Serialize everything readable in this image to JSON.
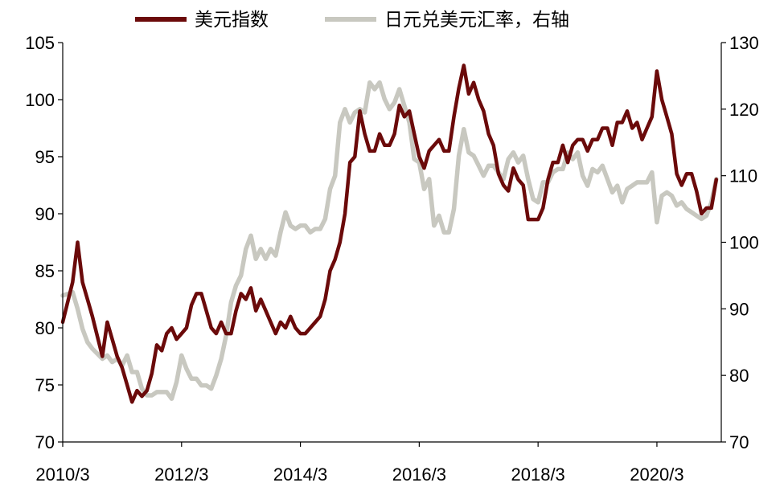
{
  "chart_data": {
    "type": "line",
    "legend_position": "top",
    "grid": false,
    "series": [
      {
        "name": "美元指数",
        "axis": "left",
        "color": "#6b0a0a",
        "points": [
          [
            "2010-03",
            80.5
          ],
          [
            "2010-05",
            84.0
          ],
          [
            "2010-06",
            87.5
          ],
          [
            "2010-07",
            84.0
          ],
          [
            "2010-08",
            82.5
          ],
          [
            "2010-09",
            81.0
          ],
          [
            "2010-11",
            77.5
          ],
          [
            "2010-12",
            80.5
          ],
          [
            "2011-01",
            79.0
          ],
          [
            "2011-02",
            77.5
          ],
          [
            "2011-03",
            76.5
          ],
          [
            "2011-04",
            75.0
          ],
          [
            "2011-05",
            73.5
          ],
          [
            "2011-06",
            74.5
          ],
          [
            "2011-07",
            74.0
          ],
          [
            "2011-08",
            74.5
          ],
          [
            "2011-09",
            76.0
          ],
          [
            "2011-10",
            78.5
          ],
          [
            "2011-11",
            78.0
          ],
          [
            "2011-12",
            79.5
          ],
          [
            "2012-01",
            80.0
          ],
          [
            "2012-02",
            79.0
          ],
          [
            "2012-03",
            79.5
          ],
          [
            "2012-04",
            80.0
          ],
          [
            "2012-05",
            82.0
          ],
          [
            "2012-06",
            83.0
          ],
          [
            "2012-07",
            83.0
          ],
          [
            "2012-08",
            81.5
          ],
          [
            "2012-09",
            80.0
          ],
          [
            "2012-10",
            79.5
          ],
          [
            "2012-11",
            80.5
          ],
          [
            "2012-12",
            79.5
          ],
          [
            "2013-01",
            79.5
          ],
          [
            "2013-02",
            81.5
          ],
          [
            "2013-03",
            83.0
          ],
          [
            "2013-04",
            82.5
          ],
          [
            "2013-05",
            83.5
          ],
          [
            "2013-06",
            81.5
          ],
          [
            "2013-07",
            82.5
          ],
          [
            "2013-08",
            81.5
          ],
          [
            "2013-09",
            80.5
          ],
          [
            "2013-10",
            79.5
          ],
          [
            "2013-11",
            80.5
          ],
          [
            "2013-12",
            80.0
          ],
          [
            "2014-01",
            81.0
          ],
          [
            "2014-02",
            80.0
          ],
          [
            "2014-03",
            79.5
          ],
          [
            "2014-04",
            79.5
          ],
          [
            "2014-05",
            80.0
          ],
          [
            "2014-06",
            80.5
          ],
          [
            "2014-07",
            81.0
          ],
          [
            "2014-08",
            82.5
          ],
          [
            "2014-09",
            85.0
          ],
          [
            "2014-10",
            86.0
          ],
          [
            "2014-11",
            87.5
          ],
          [
            "2014-12",
            90.0
          ],
          [
            "2015-01",
            94.5
          ],
          [
            "2015-02",
            95.0
          ],
          [
            "2015-03",
            99.0
          ],
          [
            "2015-04",
            97.0
          ],
          [
            "2015-05",
            95.5
          ],
          [
            "2015-06",
            95.5
          ],
          [
            "2015-07",
            97.0
          ],
          [
            "2015-08",
            96.0
          ],
          [
            "2015-09",
            96.0
          ],
          [
            "2015-10",
            97.0
          ],
          [
            "2015-11",
            99.5
          ],
          [
            "2015-12",
            98.5
          ],
          [
            "2016-01",
            99.0
          ],
          [
            "2016-02",
            97.0
          ],
          [
            "2016-03",
            95.0
          ],
          [
            "2016-04",
            94.0
          ],
          [
            "2016-05",
            95.5
          ],
          [
            "2016-06",
            96.0
          ],
          [
            "2016-07",
            96.5
          ],
          [
            "2016-08",
            95.5
          ],
          [
            "2016-09",
            95.5
          ],
          [
            "2016-10",
            98.5
          ],
          [
            "2016-11",
            101.0
          ],
          [
            "2016-12",
            103.0
          ],
          [
            "2017-01",
            100.5
          ],
          [
            "2017-02",
            101.5
          ],
          [
            "2017-03",
            100.0
          ],
          [
            "2017-04",
            99.0
          ],
          [
            "2017-05",
            97.0
          ],
          [
            "2017-06",
            96.0
          ],
          [
            "2017-07",
            93.5
          ],
          [
            "2017-08",
            92.5
          ],
          [
            "2017-09",
            92.0
          ],
          [
            "2017-10",
            94.0
          ],
          [
            "2017-11",
            93.0
          ],
          [
            "2017-12",
            92.5
          ],
          [
            "2018-01",
            89.5
          ],
          [
            "2018-02",
            89.5
          ],
          [
            "2018-03",
            89.5
          ],
          [
            "2018-04",
            90.5
          ],
          [
            "2018-05",
            93.0
          ],
          [
            "2018-06",
            94.5
          ],
          [
            "2018-07",
            94.5
          ],
          [
            "2018-08",
            96.0
          ],
          [
            "2018-09",
            94.5
          ],
          [
            "2018-10",
            96.0
          ],
          [
            "2018-11",
            96.5
          ],
          [
            "2018-12",
            96.5
          ],
          [
            "2019-01",
            95.5
          ],
          [
            "2019-02",
            96.5
          ],
          [
            "2019-03",
            96.5
          ],
          [
            "2019-04",
            97.5
          ],
          [
            "2019-05",
            97.5
          ],
          [
            "2019-06",
            96.0
          ],
          [
            "2019-07",
            98.0
          ],
          [
            "2019-08",
            98.0
          ],
          [
            "2019-09",
            99.0
          ],
          [
            "2019-10",
            97.5
          ],
          [
            "2019-11",
            98.0
          ],
          [
            "2019-12",
            96.5
          ],
          [
            "2020-01",
            97.5
          ],
          [
            "2020-02",
            98.5
          ],
          [
            "2020-03",
            102.5
          ],
          [
            "2020-04",
            100.0
          ],
          [
            "2020-05",
            98.5
          ],
          [
            "2020-06",
            97.0
          ],
          [
            "2020-07",
            93.5
          ],
          [
            "2020-08",
            92.5
          ],
          [
            "2020-09",
            93.5
          ],
          [
            "2020-10",
            93.5
          ],
          [
            "2020-11",
            92.0
          ],
          [
            "2020-12",
            90.0
          ],
          [
            "2021-01",
            90.5
          ],
          [
            "2021-02",
            90.5
          ],
          [
            "2021-03",
            93.0
          ]
        ]
      },
      {
        "name": "日元兑美元汇率，右轴",
        "axis": "right",
        "color": "#c8c8c0",
        "points": [
          [
            "2010-03",
            92.0
          ],
          [
            "2010-05",
            92.5
          ],
          [
            "2010-06",
            90.0
          ],
          [
            "2010-07",
            87.0
          ],
          [
            "2010-08",
            85.0
          ],
          [
            "2010-09",
            84.0
          ],
          [
            "2010-11",
            82.5
          ],
          [
            "2010-12",
            83.0
          ],
          [
            "2011-01",
            82.0
          ],
          [
            "2011-02",
            82.5
          ],
          [
            "2011-03",
            81.5
          ],
          [
            "2011-04",
            83.0
          ],
          [
            "2011-05",
            80.5
          ],
          [
            "2011-06",
            80.5
          ],
          [
            "2011-07",
            78.0
          ],
          [
            "2011-08",
            77.0
          ],
          [
            "2011-09",
            77.0
          ],
          [
            "2011-10",
            77.5
          ],
          [
            "2011-11",
            77.5
          ],
          [
            "2011-12",
            77.5
          ],
          [
            "2012-01",
            76.5
          ],
          [
            "2012-02",
            79.0
          ],
          [
            "2012-03",
            83.0
          ],
          [
            "2012-04",
            81.0
          ],
          [
            "2012-05",
            79.5
          ],
          [
            "2012-06",
            79.5
          ],
          [
            "2012-07",
            78.5
          ],
          [
            "2012-08",
            78.5
          ],
          [
            "2012-09",
            78.0
          ],
          [
            "2012-10",
            80.0
          ],
          [
            "2012-11",
            82.5
          ],
          [
            "2012-12",
            86.0
          ],
          [
            "2013-01",
            91.0
          ],
          [
            "2013-02",
            93.5
          ],
          [
            "2013-03",
            95.0
          ],
          [
            "2013-04",
            99.0
          ],
          [
            "2013-05",
            101.0
          ],
          [
            "2013-06",
            97.5
          ],
          [
            "2013-07",
            99.0
          ],
          [
            "2013-08",
            97.5
          ],
          [
            "2013-09",
            99.0
          ],
          [
            "2013-10",
            98.0
          ],
          [
            "2013-11",
            101.5
          ],
          [
            "2013-12",
            104.5
          ],
          [
            "2014-01",
            102.5
          ],
          [
            "2014-02",
            102.0
          ],
          [
            "2014-03",
            102.5
          ],
          [
            "2014-04",
            102.5
          ],
          [
            "2014-05",
            101.5
          ],
          [
            "2014-06",
            102.0
          ],
          [
            "2014-07",
            102.0
          ],
          [
            "2014-08",
            103.5
          ],
          [
            "2014-09",
            108.0
          ],
          [
            "2014-10",
            110.0
          ],
          [
            "2014-11",
            118.0
          ],
          [
            "2014-12",
            120.0
          ],
          [
            "2015-01",
            118.0
          ],
          [
            "2015-02",
            119.5
          ],
          [
            "2015-03",
            120.0
          ],
          [
            "2015-04",
            119.5
          ],
          [
            "2015-05",
            124.0
          ],
          [
            "2015-06",
            123.0
          ],
          [
            "2015-07",
            124.0
          ],
          [
            "2015-08",
            121.5
          ],
          [
            "2015-09",
            120.0
          ],
          [
            "2015-10",
            121.0
          ],
          [
            "2015-11",
            123.0
          ],
          [
            "2015-12",
            120.5
          ],
          [
            "2016-01",
            118.0
          ],
          [
            "2016-02",
            112.5
          ],
          [
            "2016-03",
            112.0
          ],
          [
            "2016-04",
            108.0
          ],
          [
            "2016-05",
            109.5
          ],
          [
            "2016-06",
            102.5
          ],
          [
            "2016-07",
            104.0
          ],
          [
            "2016-08",
            101.5
          ],
          [
            "2016-09",
            101.5
          ],
          [
            "2016-10",
            105.0
          ],
          [
            "2016-11",
            113.0
          ],
          [
            "2016-12",
            117.0
          ],
          [
            "2017-01",
            113.5
          ],
          [
            "2017-02",
            113.0
          ],
          [
            "2017-03",
            111.5
          ],
          [
            "2017-04",
            110.0
          ],
          [
            "2017-05",
            111.5
          ],
          [
            "2017-06",
            111.5
          ],
          [
            "2017-07",
            110.5
          ],
          [
            "2017-08",
            109.5
          ],
          [
            "2017-09",
            112.5
          ],
          [
            "2017-10",
            113.5
          ],
          [
            "2017-11",
            112.0
          ],
          [
            "2017-12",
            113.0
          ],
          [
            "2018-01",
            109.5
          ],
          [
            "2018-02",
            106.5
          ],
          [
            "2018-03",
            106.0
          ],
          [
            "2018-04",
            109.0
          ],
          [
            "2018-05",
            109.0
          ],
          [
            "2018-06",
            110.5
          ],
          [
            "2018-07",
            111.0
          ],
          [
            "2018-08",
            111.0
          ],
          [
            "2018-09",
            113.5
          ],
          [
            "2018-10",
            112.5
          ],
          [
            "2018-11",
            113.5
          ],
          [
            "2018-12",
            110.0
          ],
          [
            "2019-01",
            108.5
          ],
          [
            "2019-02",
            111.0
          ],
          [
            "2019-03",
            110.5
          ],
          [
            "2019-04",
            111.5
          ],
          [
            "2019-05",
            109.5
          ],
          [
            "2019-06",
            107.5
          ],
          [
            "2019-07",
            108.5
          ],
          [
            "2019-08",
            106.0
          ],
          [
            "2019-09",
            108.0
          ],
          [
            "2019-10",
            108.5
          ],
          [
            "2019-11",
            109.0
          ],
          [
            "2019-12",
            109.0
          ],
          [
            "2020-01",
            109.0
          ],
          [
            "2020-02",
            110.5
          ],
          [
            "2020-03",
            103.0
          ],
          [
            "2020-04",
            107.0
          ],
          [
            "2020-05",
            107.5
          ],
          [
            "2020-06",
            107.0
          ],
          [
            "2020-07",
            105.5
          ],
          [
            "2020-08",
            106.0
          ],
          [
            "2020-09",
            105.0
          ],
          [
            "2020-10",
            104.5
          ],
          [
            "2020-11",
            104.0
          ],
          [
            "2020-12",
            103.5
          ],
          [
            "2021-01",
            104.0
          ],
          [
            "2021-02",
            106.0
          ],
          [
            "2021-03",
            109.5
          ]
        ]
      }
    ],
    "x_axis": {
      "range": [
        "2010-03",
        "2021-04"
      ],
      "ticks": [
        "2010-03",
        "2012-03",
        "2014-03",
        "2016-03",
        "2018-03",
        "2020-03"
      ],
      "tick_labels": [
        "2010/3",
        "2012/3",
        "2014/3",
        "2016/3",
        "2018/3",
        "2020/3"
      ]
    },
    "y_left": {
      "range": [
        70,
        105
      ],
      "ticks": [
        70,
        75,
        80,
        85,
        90,
        95,
        100,
        105
      ],
      "tick_labels": [
        "70",
        "75",
        "80",
        "85",
        "90",
        "95",
        "100",
        "105"
      ]
    },
    "y_right": {
      "range": [
        70,
        130
      ],
      "ticks": [
        70,
        80,
        90,
        100,
        110,
        120,
        130
      ],
      "tick_labels": [
        "70",
        "80",
        "90",
        "100",
        "110",
        "120",
        "130"
      ]
    }
  }
}
